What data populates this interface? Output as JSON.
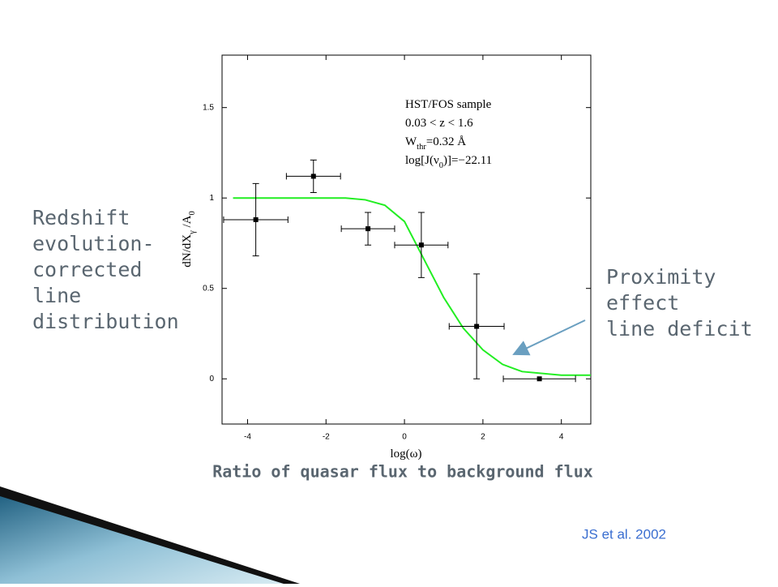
{
  "slide": {
    "left_label": [
      "Redshift",
      "evolution-",
      "corrected",
      "line",
      "distribution"
    ],
    "right_label": [
      "Proximity",
      "effect",
      "line deficit"
    ],
    "caption": "Ratio of quasar flux to background flux",
    "credit": "JS et al. 2002"
  },
  "chart_data": {
    "type": "scatter",
    "x_label": [
      {
        "t": "log(ω)"
      }
    ],
    "y_label": [
      {
        "t": "dN/dX"
      },
      {
        "sub": "γ"
      },
      {
        "t": " /A"
      },
      {
        "sub": "0"
      }
    ],
    "annotation": [
      [
        {
          "t": "HST/FOS sample"
        }
      ],
      [
        {
          "t": "0.03 < z < 1.6"
        }
      ],
      [
        {
          "t": "W"
        },
        {
          "sub": "thr"
        },
        {
          "t": "=0.32 Å"
        }
      ],
      [
        {
          "t": "log[J(ν"
        },
        {
          "sub": "0"
        },
        {
          "t": ")]=−22.11"
        }
      ]
    ],
    "xlim": [
      -4.65,
      4.75
    ],
    "xticks": [
      -4,
      -2,
      0,
      2,
      4
    ],
    "ylim": [
      -0.25,
      1.79
    ],
    "yticks": [
      0,
      0.5,
      1,
      1.5
    ],
    "points": {
      "color": "#000000",
      "x": [
        -3.79,
        -2.32,
        -0.93,
        0.43,
        1.84,
        3.44
      ],
      "y": [
        0.88,
        1.12,
        0.83,
        0.74,
        0.29,
        0.0
      ],
      "xerr": [
        0.82,
        0.69,
        0.68,
        0.68,
        0.7,
        0.92
      ],
      "yerr": [
        0.2,
        0.09,
        0.09,
        0.18,
        0.29,
        null
      ]
    },
    "curve": {
      "color": "#22ee22",
      "x": [
        -4.37,
        -1.5,
        -1,
        -0.5,
        0,
        0.5,
        1,
        1.5,
        2,
        2.5,
        3,
        4,
        4.75
      ],
      "y": [
        1.0,
        1.0,
        0.99,
        0.96,
        0.87,
        0.66,
        0.45,
        0.28,
        0.16,
        0.08,
        0.04,
        0.02,
        0.02
      ]
    }
  }
}
